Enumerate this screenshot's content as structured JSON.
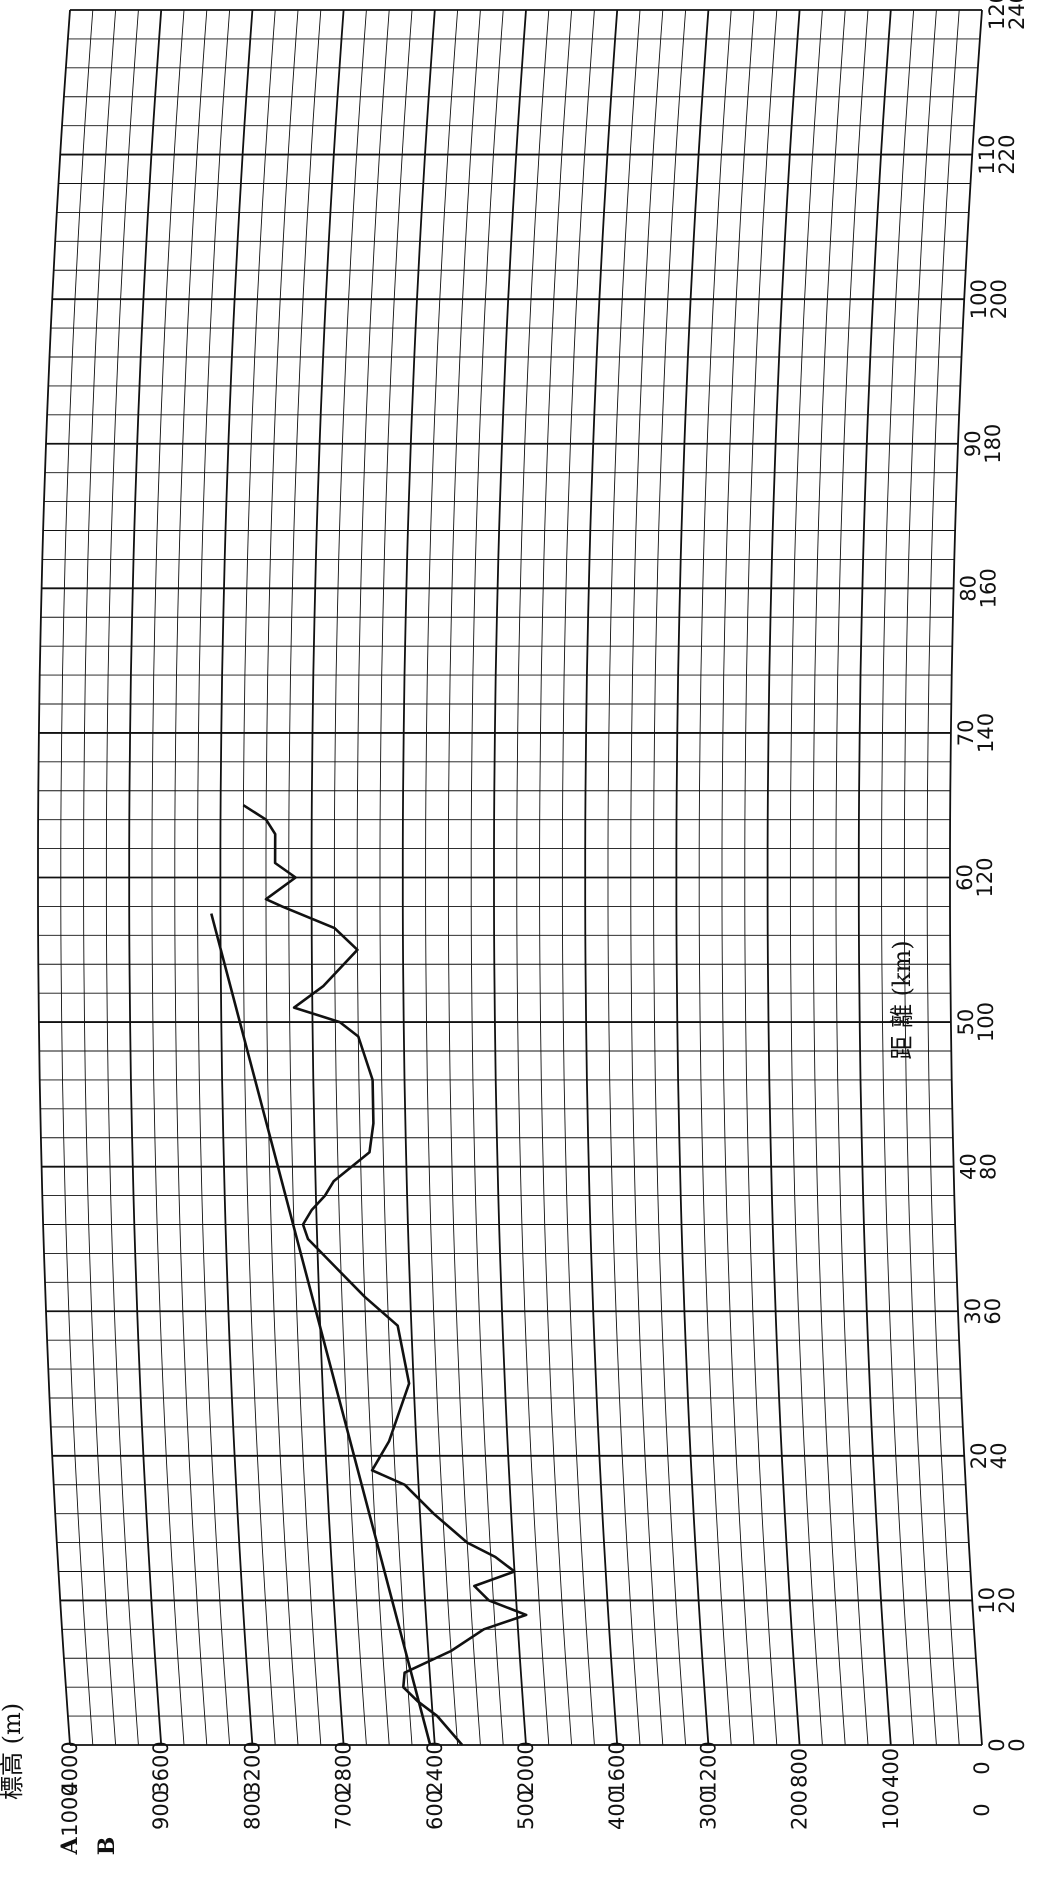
{
  "chart_data": {
    "type": "line",
    "title": "",
    "orientation": "rotated-90-clockwise",
    "grid": "curved earth-profile grid",
    "xlabel": "距 離 (km)",
    "ylabel": "標高 (m)",
    "scale_labels": {
      "a": "A",
      "b": "B"
    },
    "x_ticks": [
      {
        "a": "0",
        "b": "0"
      },
      {
        "a": "10",
        "b": "20"
      },
      {
        "a": "20",
        "b": "40"
      },
      {
        "a": "30",
        "b": "60"
      },
      {
        "a": "40",
        "b": "80"
      },
      {
        "a": "50",
        "b": "100"
      },
      {
        "a": "60",
        "b": "120"
      },
      {
        "a": "70",
        "b": "140"
      },
      {
        "a": "80",
        "b": "160"
      },
      {
        "a": "90",
        "b": "180"
      },
      {
        "a": "100",
        "b": "200"
      },
      {
        "a": "110",
        "b": "220"
      },
      {
        "a": "120",
        "b": "240"
      }
    ],
    "y_ticks": [
      {
        "a": "0",
        "b": "0"
      },
      {
        "a": "100",
        "b": "400"
      },
      {
        "a": "200",
        "b": "800"
      },
      {
        "a": "300",
        "b": "1200"
      },
      {
        "a": "400",
        "b": "1600"
      },
      {
        "a": "500",
        "b": "2000"
      },
      {
        "a": "600",
        "b": "2400"
      },
      {
        "a": "700",
        "b": "2800"
      },
      {
        "a": "800",
        "b": "3200"
      },
      {
        "a": "900",
        "b": "3600"
      },
      {
        "a": "1000",
        "b": "4000"
      }
    ],
    "xlim_km_b": [
      0,
      240
    ],
    "ylim_m_b": [
      0,
      4000
    ],
    "series": [
      {
        "kind": "terrain-profile",
        "points_km_b_m_b": [
          [
            0,
            2280
          ],
          [
            2,
            2330
          ],
          [
            4,
            2380
          ],
          [
            6,
            2460
          ],
          [
            8,
            2520
          ],
          [
            10,
            2510
          ],
          [
            13,
            2300
          ],
          [
            16,
            2150
          ],
          [
            18,
            1960
          ],
          [
            20,
            2120
          ],
          [
            22,
            2180
          ],
          [
            24,
            2000
          ],
          [
            26,
            2080
          ],
          [
            28,
            2200
          ],
          [
            32,
            2340
          ],
          [
            36,
            2460
          ],
          [
            38,
            2600
          ],
          [
            42,
            2520
          ],
          [
            50,
            2420
          ],
          [
            58,
            2460
          ],
          [
            62,
            2600
          ],
          [
            66,
            2720
          ],
          [
            70,
            2840
          ],
          [
            72,
            2860
          ],
          [
            74,
            2820
          ],
          [
            76,
            2760
          ],
          [
            78,
            2720
          ],
          [
            82,
            2560
          ],
          [
            86,
            2540
          ],
          [
            92,
            2540
          ],
          [
            98,
            2600
          ],
          [
            100,
            2680
          ],
          [
            102,
            2880
          ],
          [
            105,
            2750
          ],
          [
            110,
            2600
          ],
          [
            113,
            2700
          ],
          [
            116,
            2930
          ],
          [
            117,
            3000
          ],
          [
            120,
            2870
          ],
          [
            122,
            2960
          ],
          [
            126,
            2960
          ],
          [
            128,
            3000
          ],
          [
            130,
            3100
          ]
        ]
      },
      {
        "kind": "line-of-sight",
        "points_km_b_m_b": [
          [
            0,
            2420
          ],
          [
            115,
            3240
          ]
        ]
      }
    ]
  }
}
